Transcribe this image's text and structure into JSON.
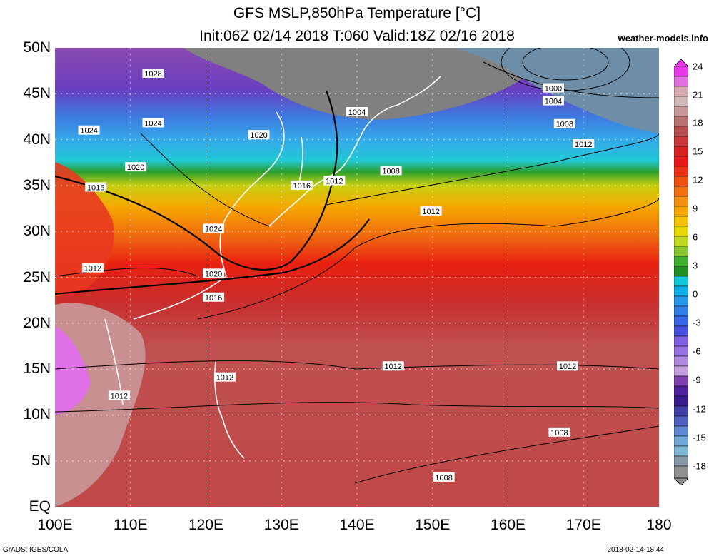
{
  "header": {
    "title_line1": "GFS MSLP,850hPa Temperature [°C]",
    "title_line2": "Init:06Z 02/14 2018 T:060 Valid:18Z 02/16 2018",
    "website": "weather-models.info"
  },
  "footer": {
    "credit": "GrADS: IGES/COLA",
    "timestamp": "2018-02-14-18:44"
  },
  "axes": {
    "lat_labels": [
      "50N",
      "45N",
      "40N",
      "35N",
      "30N",
      "25N",
      "20N",
      "15N",
      "10N",
      "5N",
      "EQ"
    ],
    "lon_labels": [
      "100E",
      "110E",
      "120E",
      "130E",
      "140E",
      "150E",
      "160E",
      "170E",
      "180"
    ]
  },
  "colorbar": {
    "labels": [
      "24",
      "21",
      "18",
      "15",
      "12",
      "9",
      "6",
      "3",
      "0",
      "-3",
      "-6",
      "-9",
      "-12",
      "-15",
      "-18"
    ]
  },
  "isobar_labels": [
    {
      "text": "1028",
      "lat": 47.2,
      "lon": 113.0
    },
    {
      "text": "1024",
      "lat": 41.0,
      "lon": 104.5
    },
    {
      "text": "1024",
      "lat": 41.8,
      "lon": 113.0
    },
    {
      "text": "1020",
      "lat": 37.0,
      "lon": 110.7
    },
    {
      "text": "1016",
      "lat": 34.8,
      "lon": 105.4
    },
    {
      "text": "1020",
      "lat": 40.5,
      "lon": 127.0
    },
    {
      "text": "1004",
      "lat": 43.0,
      "lon": 140.0
    },
    {
      "text": "1000",
      "lat": 45.6,
      "lon": 166.0
    },
    {
      "text": "1004",
      "lat": 44.2,
      "lon": 166.0
    },
    {
      "text": "1008",
      "lat": 41.7,
      "lon": 167.5
    },
    {
      "text": "1012",
      "lat": 39.5,
      "lon": 170.0
    },
    {
      "text": "1008",
      "lat": 36.6,
      "lon": 144.5
    },
    {
      "text": "1012",
      "lat": 35.5,
      "lon": 137.0
    },
    {
      "text": "1016",
      "lat": 35.0,
      "lon": 132.7
    },
    {
      "text": "1012",
      "lat": 32.2,
      "lon": 149.8
    },
    {
      "text": "1024",
      "lat": 30.3,
      "lon": 121.0
    },
    {
      "text": "1012",
      "lat": 26.0,
      "lon": 105.0
    },
    {
      "text": "1020",
      "lat": 25.4,
      "lon": 121.0
    },
    {
      "text": "1016",
      "lat": 22.8,
      "lon": 121.0
    },
    {
      "text": "1012",
      "lat": 15.3,
      "lon": 144.8
    },
    {
      "text": "1012",
      "lat": 15.3,
      "lon": 167.9
    },
    {
      "text": "1012",
      "lat": 14.1,
      "lon": 122.5
    },
    {
      "text": "1012",
      "lat": 12.1,
      "lon": 108.5
    },
    {
      "text": "1008",
      "lat": 8.1,
      "lon": 166.8
    },
    {
      "text": "1008",
      "lat": 3.2,
      "lon": 151.5
    }
  ]
}
